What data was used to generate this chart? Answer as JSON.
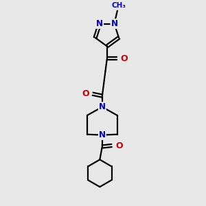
{
  "bg_color": "#e8e8e8",
  "atom_colors": {
    "C": "#000000",
    "N": "#0000cc",
    "O": "#cc0000"
  },
  "bond_color": "#000000",
  "bond_width": 1.6,
  "figsize": [
    3.0,
    3.0
  ],
  "dpi": 100
}
